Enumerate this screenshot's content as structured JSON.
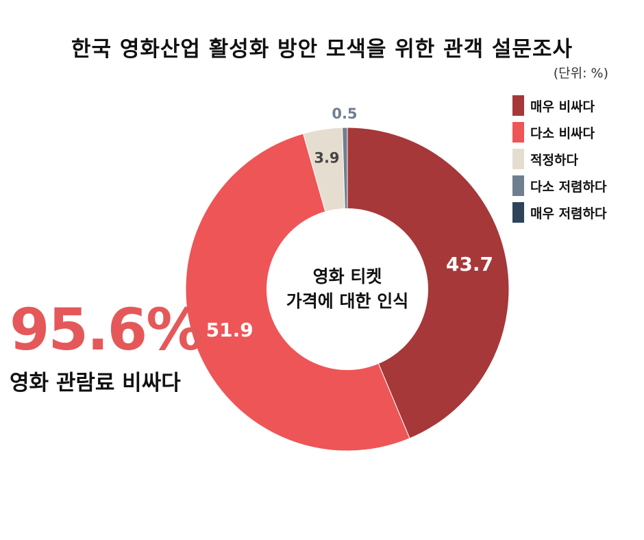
{
  "title": "한국 영화산업 활성화 방안 모색을 위한 관객 설문조사",
  "unit": "(단위: %)",
  "highlight": {
    "value": "95.6%",
    "caption": "영화 관람료 비싸다"
  },
  "chart_data": {
    "type": "donut",
    "center_label": [
      "영화 티켓",
      "가격에 대한 인식"
    ],
    "slices": [
      {
        "name": "매우 비싸다",
        "value": 43.7,
        "label": "43.7",
        "color": "#a6383a",
        "label_color": "#ffffff"
      },
      {
        "name": "다소 비싸다",
        "value": 51.9,
        "label": "51.9",
        "color": "#ee5557",
        "label_color": "#ffffff"
      },
      {
        "name": "적정하다",
        "value": 3.9,
        "label": "3.9",
        "color": "#e6ddd1",
        "label_color": "#444444"
      },
      {
        "name": "다소 저렴하다",
        "value": 0.5,
        "label": "0.5",
        "color": "#6f7f90",
        "label_color": "#6f7f90"
      },
      {
        "name": "매우 저렴하다",
        "value": 0,
        "label": "",
        "color": "#2d4459",
        "label_color": "#2d4459"
      }
    ]
  }
}
